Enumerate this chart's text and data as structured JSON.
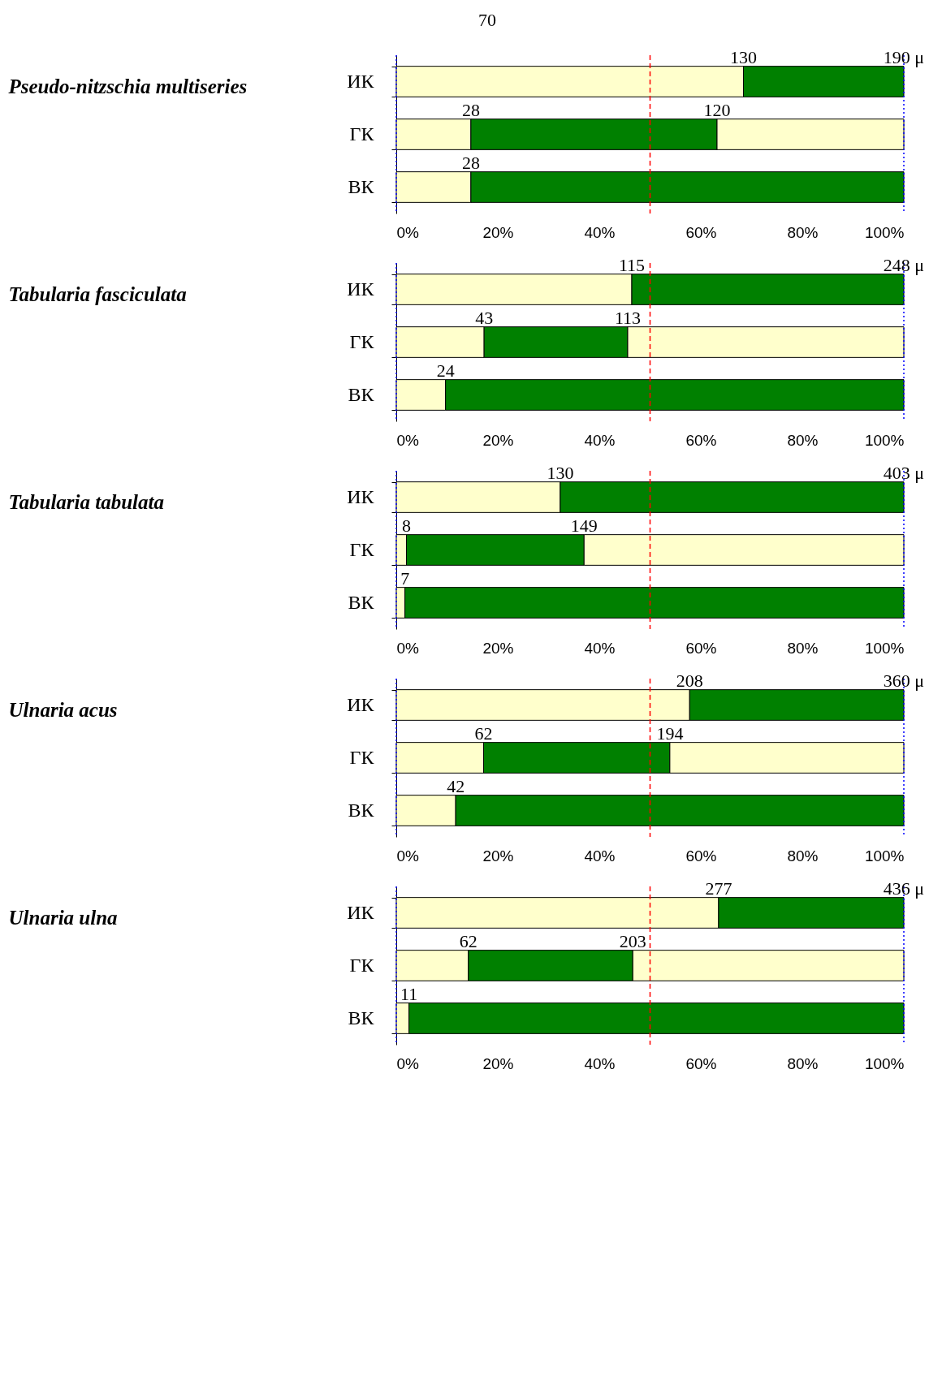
{
  "chart_data": [
    {
      "type": "bar",
      "orientation": "horizontal",
      "stacked": true,
      "ylabel": "Pseudo-nitzschia multiseries",
      "categories": [
        "ИК",
        "ГК",
        "ВК"
      ],
      "series": [
        {
          "color": "#ffffcc",
          "values": [
            68.4,
            14.7,
            14.7
          ]
        },
        {
          "color": "#008000",
          "values": [
            31.6,
            48.5,
            85.3
          ]
        },
        {
          "color": "#ffffcc",
          "values": [
            null,
            36.8,
            null
          ]
        }
      ],
      "xlim": [
        0,
        100
      ],
      "xticks": [
        {
          "value": 0,
          "label": "0%"
        },
        {
          "value": 20,
          "label": "20%"
        },
        {
          "value": 40,
          "label": "40%"
        },
        {
          "value": 60,
          "label": "60%"
        },
        {
          "value": 80,
          "label": "80%"
        },
        {
          "value": 100,
          "label": "100%"
        }
      ],
      "ref_lines": [
        {
          "axis": "x",
          "value": 50,
          "color": "#ff0000",
          "line_style": "dashed"
        },
        {
          "axis": "x",
          "value": 0,
          "color": "#0000ff",
          "line_style": "dotted"
        },
        {
          "axis": "x",
          "value": 100,
          "color": "#0000ff",
          "line_style": "dotted"
        }
      ],
      "annotations": [
        "70",
        {
          "text": "130",
          "x": 68.4,
          "y": "ИК"
        },
        {
          "text": "190 μ",
          "x": 100,
          "y": "ИК"
        },
        {
          "text": "28",
          "x": 14.7,
          "y": "ГК"
        },
        {
          "text": "120",
          "x": 63.2,
          "y": "ГК"
        },
        {
          "text": "28",
          "x": 14.7,
          "y": "ВК"
        }
      ]
    },
    {
      "type": "bar",
      "orientation": "horizontal",
      "stacked": true,
      "ylabel": "Tabularia fasciculata",
      "categories": [
        "ИК",
        "ГК",
        "ВК"
      ],
      "series": [
        {
          "color": "#ffffcc",
          "values": [
            46.4,
            17.3,
            9.7
          ]
        },
        {
          "color": "#008000",
          "values": [
            53.6,
            28.3,
            90.3
          ]
        },
        {
          "color": "#ffffcc",
          "values": [
            null,
            54.4,
            null
          ]
        }
      ],
      "xlim": [
        0,
        100
      ],
      "xticks": [
        {
          "value": 0,
          "label": "0%"
        },
        {
          "value": 20,
          "label": "20%"
        },
        {
          "value": 40,
          "label": "40%"
        },
        {
          "value": 60,
          "label": "60%"
        },
        {
          "value": 80,
          "label": "80%"
        },
        {
          "value": 100,
          "label": "100%"
        }
      ],
      "ref_lines": [
        {
          "axis": "x",
          "value": 50,
          "color": "#ff0000",
          "line_style": "dashed"
        },
        {
          "axis": "x",
          "value": 0,
          "color": "#0000ff",
          "line_style": "dotted"
        },
        {
          "axis": "x",
          "value": 100,
          "color": "#0000ff",
          "line_style": "dotted"
        }
      ],
      "annotations": [
        {
          "text": "115",
          "x": 46.4,
          "y": "ИК"
        },
        {
          "text": "248 μ",
          "x": 100,
          "y": "ИК"
        },
        {
          "text": "43",
          "x": 17.3,
          "y": "ГК"
        },
        {
          "text": "113",
          "x": 45.6,
          "y": "ГК"
        },
        {
          "text": "24",
          "x": 9.7,
          "y": "ВК"
        }
      ]
    },
    {
      "type": "bar",
      "orientation": "horizontal",
      "stacked": true,
      "ylabel": "Tabularia tabulata",
      "categories": [
        "ИК",
        "ГК",
        "ВК"
      ],
      "series": [
        {
          "color": "#ffffcc",
          "values": [
            32.3,
            2.0,
            1.7
          ]
        },
        {
          "color": "#008000",
          "values": [
            67.7,
            35.0,
            98.3
          ]
        },
        {
          "color": "#ffffcc",
          "values": [
            null,
            63.0,
            null
          ]
        }
      ],
      "xlim": [
        0,
        100
      ],
      "xticks": [
        {
          "value": 0,
          "label": "0%"
        },
        {
          "value": 20,
          "label": "20%"
        },
        {
          "value": 40,
          "label": "40%"
        },
        {
          "value": 60,
          "label": "60%"
        },
        {
          "value": 80,
          "label": "80%"
        },
        {
          "value": 100,
          "label": "100%"
        }
      ],
      "ref_lines": [
        {
          "axis": "x",
          "value": 50,
          "color": "#ff0000",
          "line_style": "dashed"
        },
        {
          "axis": "x",
          "value": 0,
          "color": "#0000ff",
          "line_style": "dotted"
        },
        {
          "axis": "x",
          "value": 100,
          "color": "#0000ff",
          "line_style": "dotted"
        }
      ],
      "annotations": [
        {
          "text": "130",
          "x": 32.3,
          "y": "ИК"
        },
        {
          "text": "403 μ",
          "x": 100,
          "y": "ИК"
        },
        {
          "text": "8",
          "x": 2.0,
          "y": "ГК"
        },
        {
          "text": "149",
          "x": 37.0,
          "y": "ГК"
        },
        {
          "text": "7",
          "x": 1.7,
          "y": "ВК"
        }
      ]
    },
    {
      "type": "bar",
      "orientation": "horizontal",
      "stacked": true,
      "ylabel": "Ulnaria acus",
      "categories": [
        "ИК",
        "ГК",
        "ВК"
      ],
      "series": [
        {
          "color": "#ffffcc",
          "values": [
            57.8,
            17.2,
            11.7
          ]
        },
        {
          "color": "#008000",
          "values": [
            42.2,
            36.7,
            88.3
          ]
        },
        {
          "color": "#ffffcc",
          "values": [
            null,
            46.1,
            null
          ]
        }
      ],
      "xlim": [
        0,
        100
      ],
      "xticks": [
        {
          "value": 0,
          "label": "0%"
        },
        {
          "value": 20,
          "label": "20%"
        },
        {
          "value": 40,
          "label": "40%"
        },
        {
          "value": 60,
          "label": "60%"
        },
        {
          "value": 80,
          "label": "80%"
        },
        {
          "value": 100,
          "label": "100%"
        }
      ],
      "ref_lines": [
        {
          "axis": "x",
          "value": 50,
          "color": "#ff0000",
          "line_style": "dashed"
        },
        {
          "axis": "x",
          "value": 0,
          "color": "#0000ff",
          "line_style": "dotted"
        },
        {
          "axis": "x",
          "value": 100,
          "color": "#0000ff",
          "line_style": "dotted"
        }
      ],
      "annotations": [
        {
          "text": "208",
          "x": 57.8,
          "y": "ИК"
        },
        {
          "text": "360 μ",
          "x": 100,
          "y": "ИК"
        },
        {
          "text": "62",
          "x": 17.2,
          "y": "ГК"
        },
        {
          "text": "194",
          "x": 53.9,
          "y": "ГК"
        },
        {
          "text": "42",
          "x": 11.7,
          "y": "ВК"
        }
      ]
    },
    {
      "type": "bar",
      "orientation": "horizontal",
      "stacked": true,
      "ylabel": "Ulnaria ulna",
      "categories": [
        "ИК",
        "ГК",
        "ВК"
      ],
      "series": [
        {
          "color": "#ffffcc",
          "values": [
            63.5,
            14.2,
            2.5
          ]
        },
        {
          "color": "#008000",
          "values": [
            36.5,
            32.4,
            97.5
          ]
        },
        {
          "color": "#ffffcc",
          "values": [
            null,
            53.4,
            null
          ]
        }
      ],
      "xlim": [
        0,
        100
      ],
      "xticks": [
        {
          "value": 0,
          "label": "0%"
        },
        {
          "value": 20,
          "label": "20%"
        },
        {
          "value": 40,
          "label": "40%"
        },
        {
          "value": 60,
          "label": "60%"
        },
        {
          "value": 80,
          "label": "80%"
        },
        {
          "value": 100,
          "label": "100%"
        }
      ],
      "ref_lines": [
        {
          "axis": "x",
          "value": 50,
          "color": "#ff0000",
          "line_style": "dashed"
        },
        {
          "axis": "x",
          "value": 0,
          "color": "#0000ff",
          "line_style": "dotted"
        },
        {
          "axis": "x",
          "value": 100,
          "color": "#0000ff",
          "line_style": "dotted"
        }
      ],
      "annotations": [
        {
          "text": "277",
          "x": 63.5,
          "y": "ИК"
        },
        {
          "text": "436 μ",
          "x": 100,
          "y": "ИК"
        },
        {
          "text": "62",
          "x": 14.2,
          "y": "ГК"
        },
        {
          "text": "203",
          "x": 46.6,
          "y": "ГК"
        },
        {
          "text": "11",
          "x": 2.5,
          "y": "ВК"
        }
      ]
    }
  ]
}
